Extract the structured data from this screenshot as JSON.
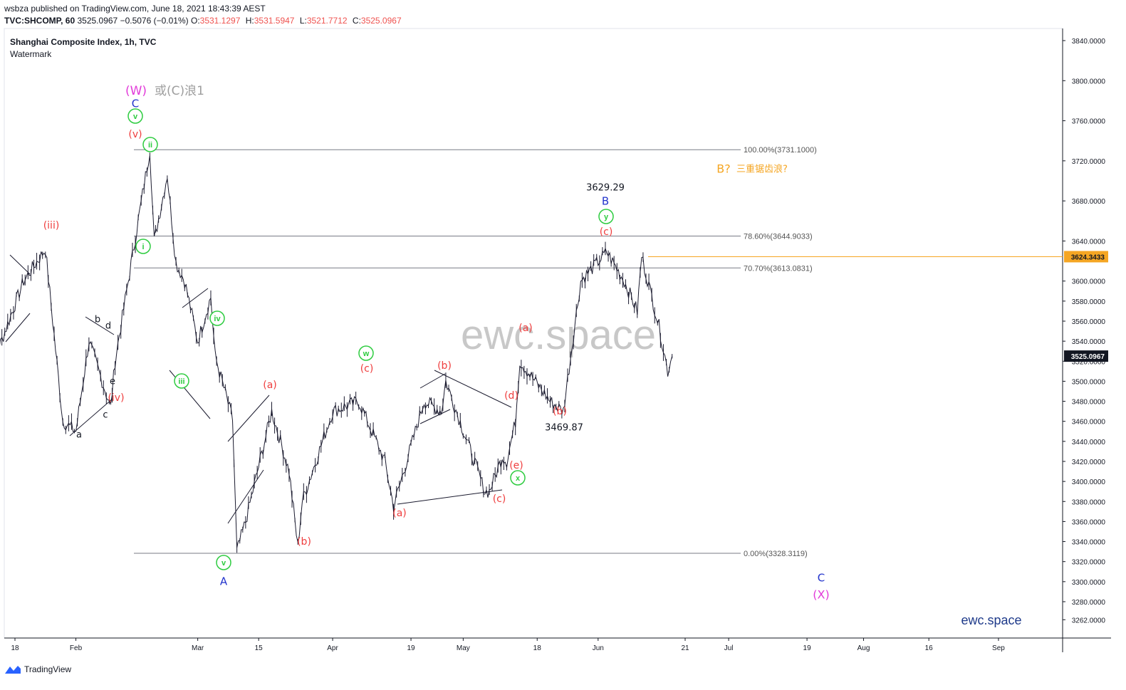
{
  "header": {
    "publisher": "wsbza published on TradingView.com, June 18, 2021 18:43:39 AEST",
    "symbol_line": "TVC:SHCOMP, 60",
    "last": "3525.0967",
    "change": "−0.5076 (−0.01%)",
    "open_label": "O:",
    "open": "3531.1297",
    "high_label": "H:",
    "high": "3531.5947",
    "low_label": "L:",
    "low": "3521.7712",
    "close_label": "C:",
    "close": "3525.0967"
  },
  "legend": {
    "title": "Shanghai Composite Index, 1h, TVC",
    "subtitle": "Watermark"
  },
  "watermark": "ewc.space",
  "footer": {
    "brand": "TradingView"
  },
  "colors": {
    "red": "#ef3e3e",
    "green": "#2ecc40",
    "blue": "#2233cc",
    "magenta": "#e23bd9",
    "gray": "#9e9e9e",
    "orange": "#f5a623",
    "axis": "#131722"
  },
  "chart_data": {
    "type": "line",
    "title": "Shanghai Composite Index, 1h, TVC",
    "ylim": [
      3250,
      3850
    ],
    "y_ticks": [
      "3840.0000",
      "3800.0000",
      "3760.0000",
      "3720.0000",
      "3680.0000",
      "3640.0000",
      "3600.0000",
      "3580.0000",
      "3560.0000",
      "3540.0000",
      "3520.0000",
      "3500.0000",
      "3480.0000",
      "3460.0000",
      "3440.0000",
      "3420.0000",
      "3400.0000",
      "3380.0000",
      "3360.0000",
      "3340.0000",
      "3320.0000",
      "3300.0000",
      "3280.0000",
      "3262.0000"
    ],
    "x_ticks": [
      "18",
      "Feb",
      "Mar",
      "15",
      "Apr",
      "19",
      "May",
      "18",
      "Jun",
      "21",
      "Jul",
      "19",
      "Aug",
      "16",
      "Sep"
    ],
    "series": [
      {
        "x": [
          "2021-01-11",
          "2021-01-14",
          "2021-01-20",
          "2021-01-25",
          "2021-01-29",
          "2021-02-01",
          "2021-02-04",
          "2021-02-09",
          "2021-02-10",
          "2021-02-18",
          "2021-02-19",
          "2021-02-22",
          "2021-02-24",
          "2021-02-26",
          "2021-03-01",
          "2021-03-04",
          "2021-03-05",
          "2021-03-09",
          "2021-03-10",
          "2021-03-12",
          "2021-03-18",
          "2021-03-22",
          "2021-03-24",
          "2021-03-25",
          "2021-04-01",
          "2021-04-07",
          "2021-04-13",
          "2021-04-15",
          "2021-04-22",
          "2021-04-26",
          "2021-04-27",
          "2021-05-06",
          "2021-05-07",
          "2021-05-10",
          "2021-05-11",
          "2021-05-13",
          "2021-05-14",
          "2021-05-21",
          "2021-05-24",
          "2021-05-28",
          "2021-06-03",
          "2021-06-07",
          "2021-06-10",
          "2021-06-11",
          "2021-06-15",
          "2021-06-17",
          "2021-06-18"
        ],
        "values": [
          3560,
          3530,
          3600,
          3632,
          3460,
          3450,
          3540,
          3474,
          3520,
          3731,
          3640,
          3706,
          3618,
          3600,
          3540,
          3584,
          3525,
          3462,
          3330,
          3360,
          3470,
          3410,
          3335,
          3380,
          3470,
          3480,
          3420,
          3375,
          3480,
          3470,
          3500,
          3390,
          3390,
          3425,
          3420,
          3460,
          3520,
          3480,
          3470,
          3600,
          3629,
          3600,
          3570,
          3625,
          3555,
          3510,
          3525
        ]
      }
    ],
    "fibonacci": [
      {
        "label": "100.00%(3731.1000)",
        "value": 3731.1
      },
      {
        "label": "78.60%(3644.9033)",
        "value": 3644.9033
      },
      {
        "label": "70.70%(3613.0831)",
        "value": 3613.0831
      },
      {
        "label": "0.00%(3328.3119)",
        "value": 3328.3119
      }
    ],
    "price_markers": [
      {
        "label": "3624.3433",
        "value": 3624.3433,
        "style": "orange"
      },
      {
        "label": "3525.0967",
        "value": 3525.0967,
        "style": "dark"
      }
    ],
    "annotations": [
      {
        "text": "(W)",
        "color": "magenta"
      },
      {
        "text": "或(C)浪1",
        "color": "gray"
      },
      {
        "text": "C",
        "color": "blue"
      },
      {
        "text": "v",
        "color": "green",
        "circled": true
      },
      {
        "text": "(v)",
        "color": "red"
      },
      {
        "text": "ii",
        "color": "green",
        "circled": true
      },
      {
        "text": "(iii)",
        "color": "red"
      },
      {
        "text": "i",
        "color": "green",
        "circled": true
      },
      {
        "text": "b",
        "color": "dark"
      },
      {
        "text": "d",
        "color": "dark"
      },
      {
        "text": "e",
        "color": "dark"
      },
      {
        "text": "c",
        "color": "dark"
      },
      {
        "text": "a",
        "color": "dark"
      },
      {
        "text": "(iv)",
        "color": "red"
      },
      {
        "text": "iii",
        "color": "green",
        "circled": true
      },
      {
        "text": "iv",
        "color": "green",
        "circled": true
      },
      {
        "text": "v",
        "color": "green",
        "circled": true
      },
      {
        "text": "A",
        "color": "blue"
      },
      {
        "text": "(a)",
        "color": "red"
      },
      {
        "text": "(b)",
        "color": "red"
      },
      {
        "text": "w",
        "color": "green",
        "circled": true
      },
      {
        "text": "(c)",
        "color": "red"
      },
      {
        "text": "(a)",
        "color": "red"
      },
      {
        "text": "(b)",
        "color": "red"
      },
      {
        "text": "(d)",
        "color": "red"
      },
      {
        "text": "(e)",
        "color": "red"
      },
      {
        "text": "x",
        "color": "green",
        "circled": true
      },
      {
        "text": "(c)",
        "color": "red"
      },
      {
        "text": "(a)",
        "color": "red"
      },
      {
        "text": "(b)",
        "color": "red"
      },
      {
        "text": "3469.87",
        "color": "dark"
      },
      {
        "text": "3629.29",
        "color": "dark"
      },
      {
        "text": "B",
        "color": "blue"
      },
      {
        "text": "y",
        "color": "green",
        "circled": true
      },
      {
        "text": "(c)",
        "color": "red"
      },
      {
        "text": "B?",
        "color": "orange"
      },
      {
        "text": "三重锯齿浪?",
        "color": "orange"
      },
      {
        "text": "C",
        "color": "blue"
      },
      {
        "text": "(X)",
        "color": "magenta"
      }
    ]
  }
}
